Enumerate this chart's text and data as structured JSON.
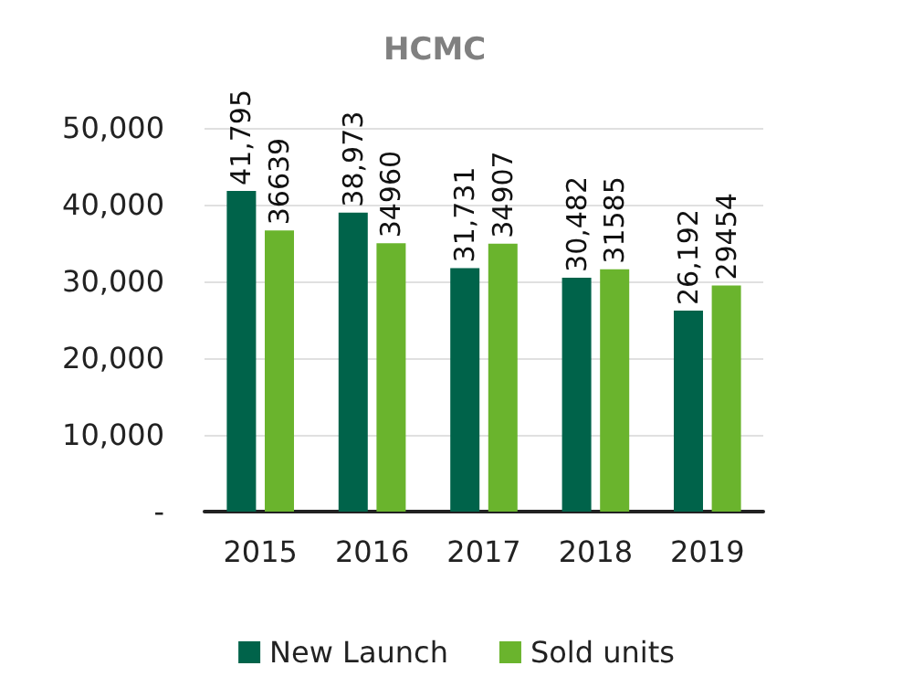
{
  "chart_data": {
    "type": "bar",
    "title": "HCMC",
    "categories": [
      "2015",
      "2016",
      "2017",
      "2018",
      "2019"
    ],
    "series": [
      {
        "name": "New Launch",
        "color": "#00634a",
        "values": [
          41795,
          38973,
          31731,
          30482,
          26192
        ],
        "value_labels": [
          "41,795",
          "38,973",
          "31,731",
          "30,482",
          "26,192"
        ]
      },
      {
        "name": "Sold units",
        "color": "#6ab42d",
        "values": [
          36639,
          34960,
          34907,
          31585,
          29454
        ],
        "value_labels": [
          "36639",
          "34960",
          "34907",
          "31585",
          "29454"
        ]
      }
    ],
    "ylim": [
      0,
      50000
    ],
    "yticks": [
      {
        "value": 0,
        "label": "-"
      },
      {
        "value": 10000,
        "label": "10,000"
      },
      {
        "value": 20000,
        "label": "20,000"
      },
      {
        "value": 30000,
        "label": "30,000"
      },
      {
        "value": 40000,
        "label": "40,000"
      },
      {
        "value": 50000,
        "label": "50,000"
      }
    ],
    "grid": "y",
    "legend": "bottom"
  }
}
